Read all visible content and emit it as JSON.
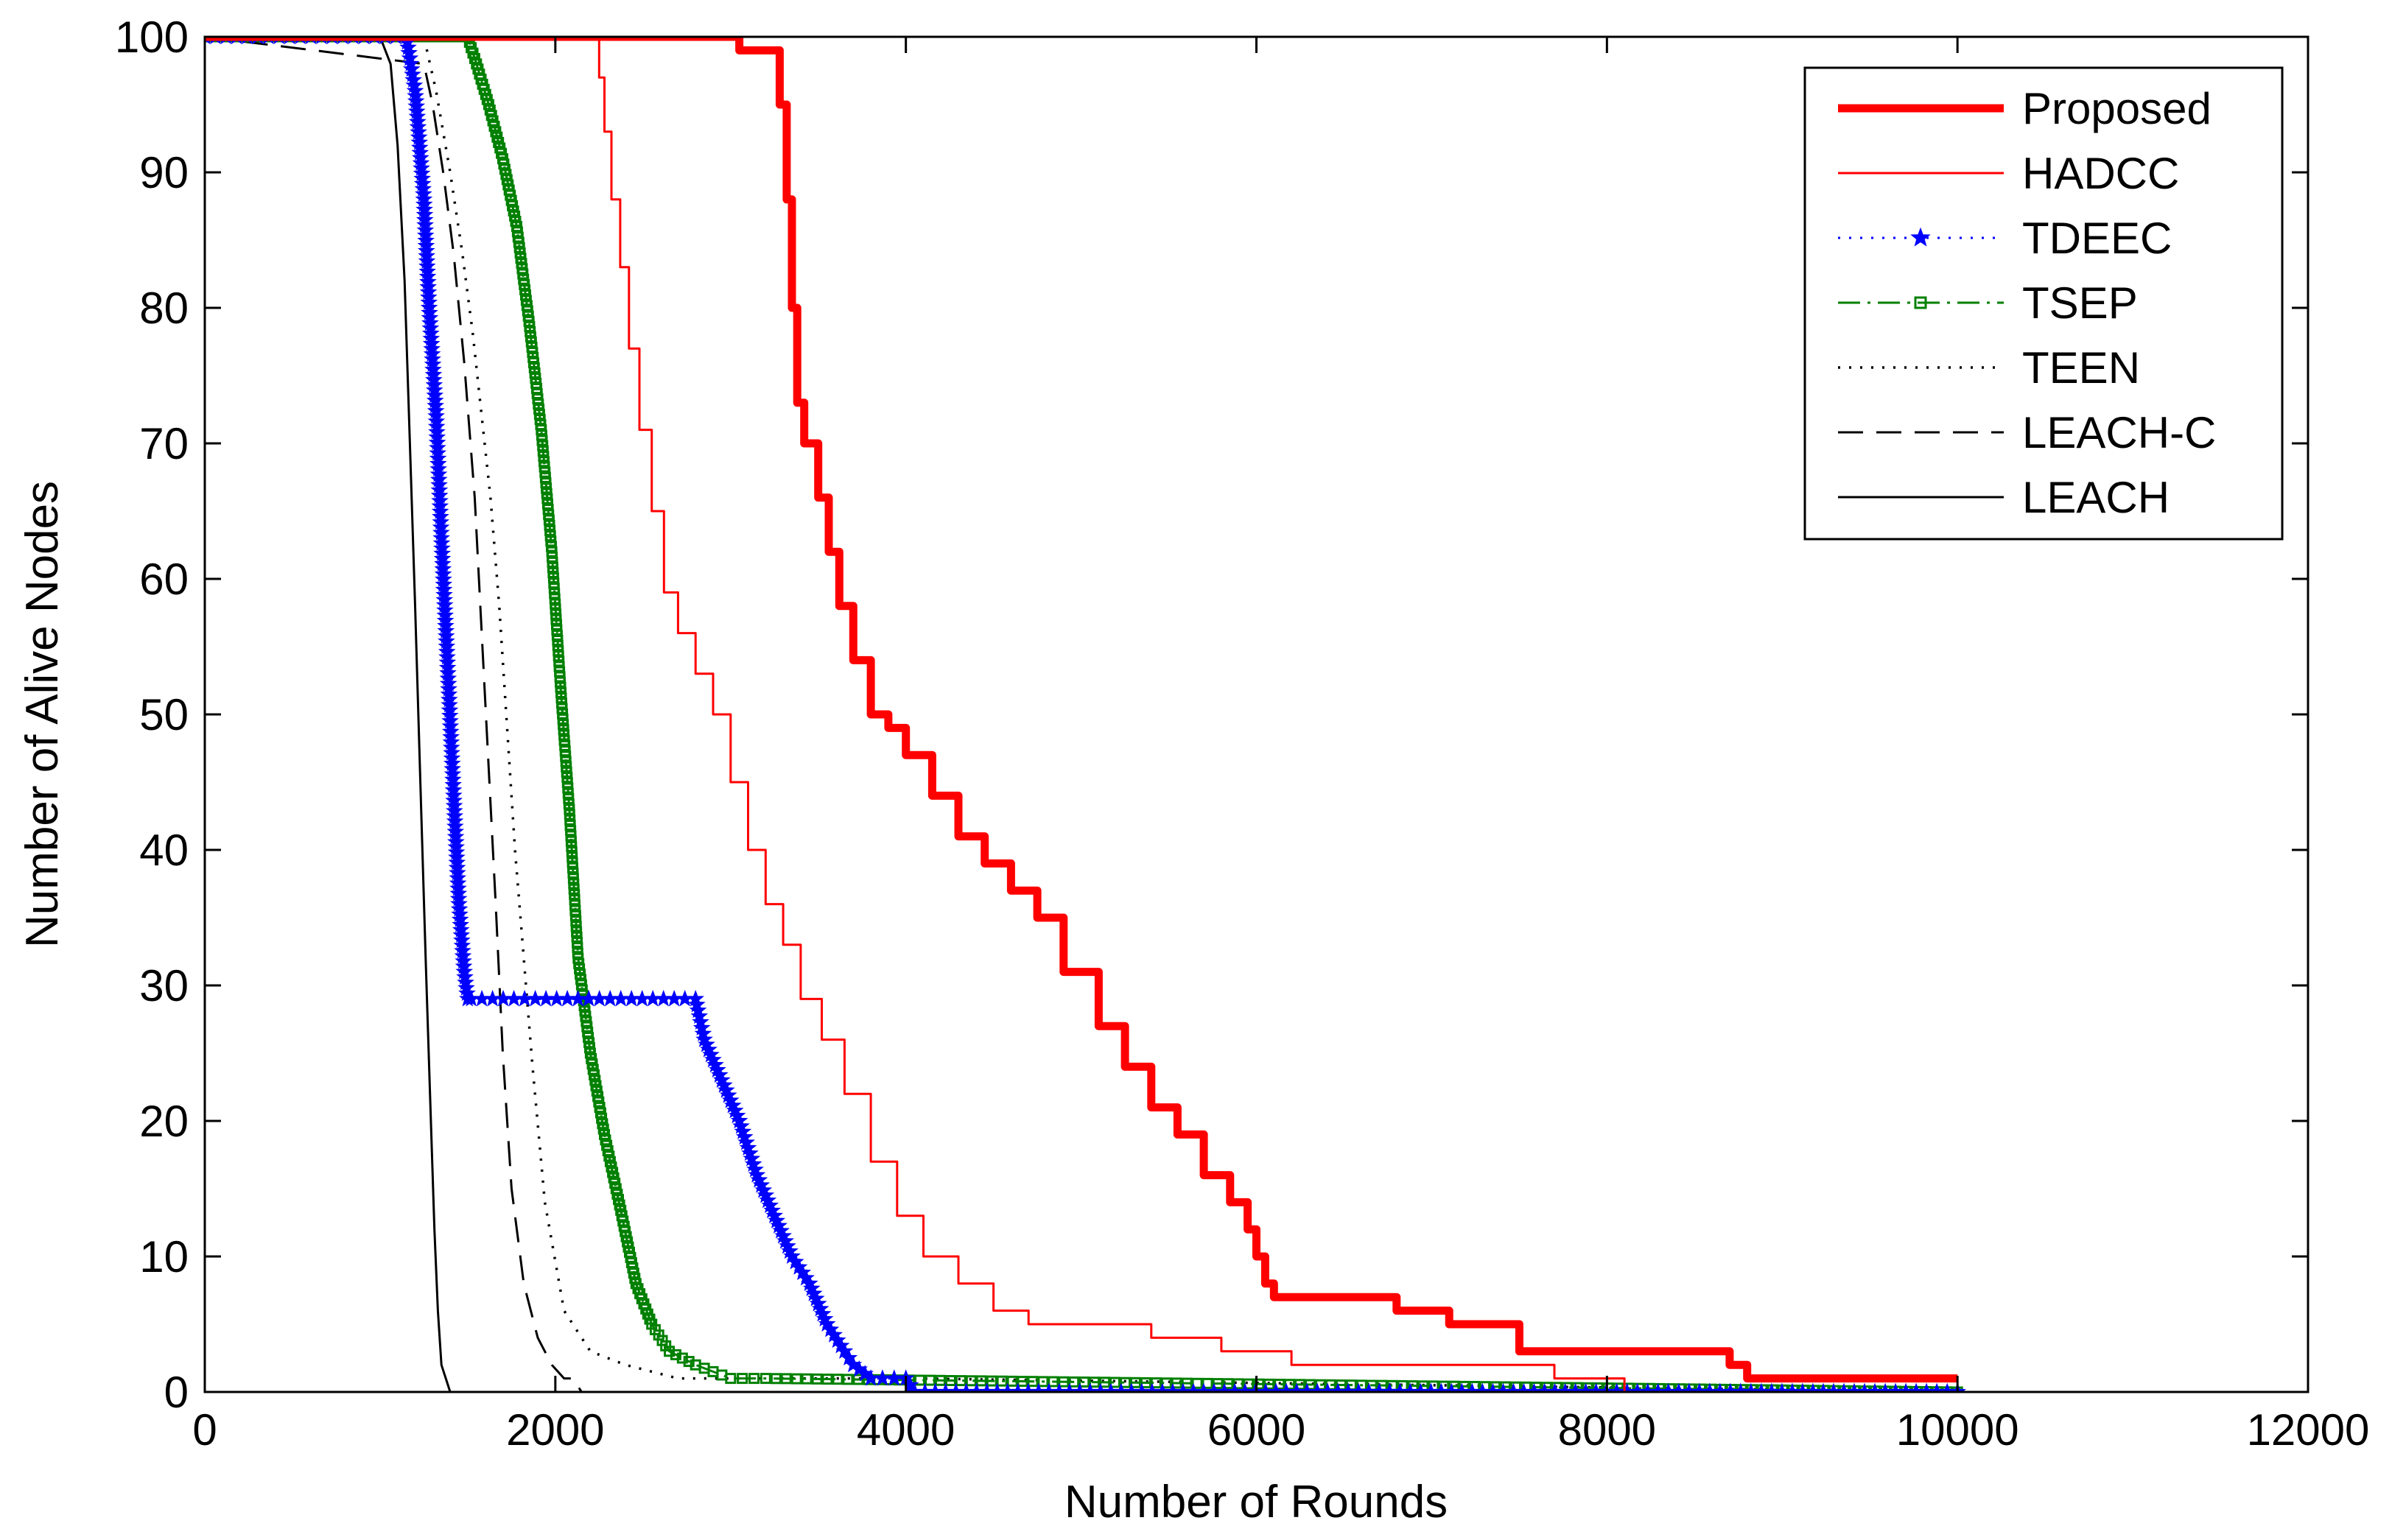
{
  "chart_data": {
    "type": "line",
    "title": "",
    "xlabel": "Number of Rounds",
    "ylabel": "Number of Alive Nodes",
    "xlim": [
      0,
      12000
    ],
    "ylim": [
      0,
      100
    ],
    "xticks": [
      0,
      2000,
      4000,
      6000,
      8000,
      10000,
      12000
    ],
    "yticks": [
      0,
      10,
      20,
      30,
      40,
      50,
      60,
      70,
      80,
      90,
      100
    ],
    "grid": false,
    "legend_position": "top-right",
    "series": [
      {
        "name": "Proposed",
        "color": "#ff0000",
        "style": "thick-solid",
        "x": [
          0,
          3050,
          3250,
          3280,
          3320,
          3350,
          3380,
          3420,
          3500,
          3560,
          3620,
          3700,
          3800,
          3900,
          4000,
          4150,
          4300,
          4450,
          4600,
          4750,
          4900,
          5100,
          5250,
          5400,
          5550,
          5700,
          5850,
          5950,
          6000,
          6050,
          6100,
          6200,
          6450,
          6800,
          7100,
          7500,
          8200,
          8700,
          8800,
          10000
        ],
        "y": [
          100,
          99,
          99,
          95,
          88,
          80,
          73,
          70,
          66,
          62,
          58,
          54,
          50,
          49,
          47,
          44,
          41,
          39,
          37,
          35,
          31,
          27,
          24,
          21,
          19,
          16,
          14,
          12,
          10,
          8,
          7,
          7,
          7,
          6,
          5,
          3,
          3,
          2,
          1,
          1
        ]
      },
      {
        "name": "HADCC",
        "color": "#ff0000",
        "style": "thin-solid",
        "x": [
          0,
          2250,
          2280,
          2320,
          2370,
          2420,
          2480,
          2550,
          2620,
          2700,
          2800,
          2900,
          3000,
          3100,
          3200,
          3300,
          3400,
          3520,
          3650,
          3800,
          3950,
          4100,
          4300,
          4500,
          4700,
          5000,
          5400,
          5800,
          6200,
          7000,
          7700,
          8000,
          8100
        ],
        "y": [
          100,
          97,
          93,
          88,
          83,
          77,
          71,
          65,
          59,
          56,
          53,
          50,
          45,
          40,
          36,
          33,
          29,
          26,
          22,
          17,
          13,
          10,
          8,
          6,
          5,
          5,
          4,
          3,
          2,
          2,
          1,
          1,
          0
        ]
      },
      {
        "name": "TDEEC",
        "color": "#0000ff",
        "style": "dotted-star",
        "x": [
          0,
          1150,
          1200,
          1250,
          1280,
          1320,
          1350,
          1380,
          1420,
          1450,
          1480,
          1500,
          1520,
          2800,
          2850,
          2950,
          3050,
          3150,
          3250,
          3350,
          3450,
          3550,
          3650,
          3700,
          3800,
          4000,
          4050,
          10000
        ],
        "y": [
          100,
          100,
          96,
          88,
          80,
          72,
          63,
          55,
          44,
          36,
          31,
          29,
          29,
          29,
          26,
          23,
          20,
          16,
          13,
          10,
          8,
          5,
          3,
          2,
          1,
          1,
          0,
          0
        ]
      },
      {
        "name": "TSEP",
        "color": "#008000",
        "style": "dash-dot-square",
        "x": [
          0,
          1500,
          1550,
          1620,
          1700,
          1780,
          1850,
          1920,
          1980,
          2030,
          2080,
          2130,
          2200,
          2280,
          2380,
          2460,
          2550,
          2650,
          2800,
          3000,
          3200,
          10000
        ],
        "y": [
          100,
          100,
          98,
          95,
          91,
          86,
          79,
          71,
          62,
          52,
          43,
          32,
          25,
          19,
          13,
          8,
          5,
          3,
          2,
          1,
          1,
          0
        ]
      },
      {
        "name": "TEEN",
        "color": "#000000",
        "style": "dotted",
        "x": [
          0,
          1250,
          1320,
          1400,
          1470,
          1530,
          1580,
          1630,
          1680,
          1720,
          1770,
          1820,
          1870,
          1940,
          2050,
          2200,
          2400,
          2700,
          3000,
          4000,
          10000
        ],
        "y": [
          100,
          100,
          96,
          90,
          84,
          78,
          72,
          66,
          58,
          50,
          40,
          32,
          24,
          14,
          6,
          3,
          2,
          1,
          1,
          1,
          0
        ]
      },
      {
        "name": "LEACH-C",
        "color": "#000000",
        "style": "dashed",
        "x": [
          0,
          1250,
          1300,
          1360,
          1420,
          1480,
          1540,
          1580,
          1620,
          1660,
          1700,
          1750,
          1820,
          1900,
          1980,
          2050,
          2100,
          2150
        ],
        "y": [
          100,
          98,
          95,
          90,
          84,
          76,
          66,
          56,
          46,
          36,
          25,
          15,
          8,
          4,
          2,
          1,
          1,
          0
        ]
      },
      {
        "name": "LEACH",
        "color": "#000000",
        "style": "thin-solid",
        "x": [
          0,
          1000,
          1060,
          1100,
          1140,
          1170,
          1200,
          1230,
          1260,
          1290,
          1310,
          1330,
          1350,
          1400
        ],
        "y": [
          100,
          100,
          98,
          92,
          82,
          70,
          58,
          45,
          32,
          20,
          12,
          6,
          2,
          0
        ]
      }
    ]
  }
}
